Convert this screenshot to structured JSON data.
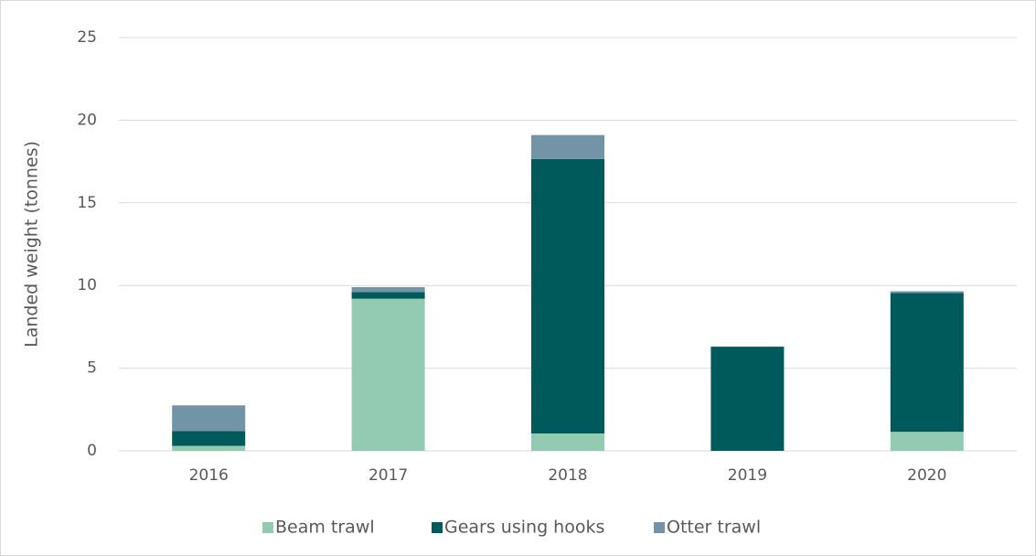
{
  "chart_data": {
    "type": "stacked_bar",
    "categories": [
      "2016",
      "2017",
      "2018",
      "2019",
      "2020"
    ],
    "y_label": "Landed weight (tonnes)",
    "series": [
      {
        "name": "Beam trawl",
        "color": "#93cbb2",
        "values": [
          0.3,
          9.2,
          1.05,
          0,
          1.15
        ]
      },
      {
        "name": "Gears using hooks",
        "color": "#005a5b",
        "values": [
          0.9,
          0.4,
          16.6,
          6.3,
          8.4
        ]
      },
      {
        "name": "Otter trawl",
        "color": "#7394a6",
        "values": [
          1.55,
          0.3,
          1.45,
          0,
          0.1
        ]
      }
    ],
    "ylim": [
      0,
      25
    ],
    "yticks": [
      0,
      5,
      10,
      15,
      20,
      25
    ],
    "grid": true,
    "legend": "bottom"
  }
}
